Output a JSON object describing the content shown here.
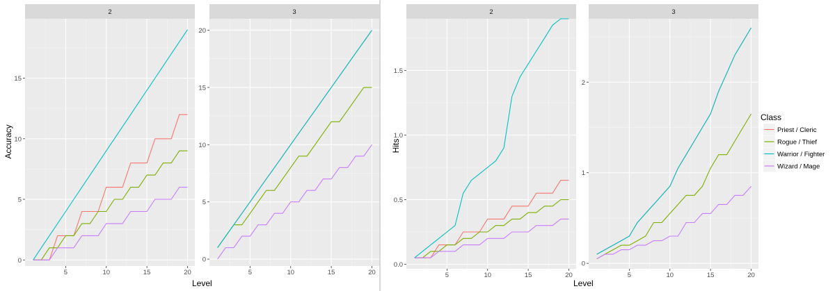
{
  "chart_data": [
    {
      "type": "line",
      "panel": "2",
      "ylabel": "Accuracy",
      "xlabel": "Level",
      "xlim": [
        0,
        20.9
      ],
      "ylim": [
        -0.5,
        19.9
      ],
      "xticks": [
        5,
        10,
        15,
        20
      ],
      "yticks": [
        0,
        5,
        10,
        15
      ],
      "x": [
        1,
        2,
        3,
        4,
        5,
        6,
        7,
        8,
        9,
        10,
        11,
        12,
        13,
        14,
        15,
        16,
        17,
        18,
        19,
        20
      ],
      "series": [
        {
          "name": "Priest / Cleric",
          "values": [
            0,
            0,
            0,
            2,
            2,
            2,
            4,
            4,
            4,
            6,
            6,
            6,
            8,
            8,
            8,
            10,
            10,
            10,
            12,
            12
          ]
        },
        {
          "name": "Rogue / Thief",
          "values": [
            0,
            0,
            1,
            1,
            2,
            2,
            3,
            3,
            4,
            4,
            5,
            5,
            6,
            6,
            7,
            7,
            8,
            8,
            9,
            9
          ]
        },
        {
          "name": "Warrior / Fighter",
          "values": [
            0,
            1,
            2,
            3,
            4,
            5,
            6,
            7,
            8,
            9,
            10,
            11,
            12,
            13,
            14,
            15,
            16,
            17,
            18,
            19
          ]
        },
        {
          "name": "Wizard / Mage",
          "values": [
            0,
            0,
            0,
            1,
            1,
            1,
            2,
            2,
            2,
            3,
            3,
            3,
            4,
            4,
            4,
            5,
            5,
            5,
            6,
            6
          ]
        }
      ]
    },
    {
      "type": "line",
      "panel": "3",
      "ylabel": "Accuracy",
      "xlabel": "Level",
      "xlim": [
        0,
        20.9
      ],
      "ylim": [
        -0.6,
        21.0
      ],
      "xticks": [
        5,
        10,
        15,
        20
      ],
      "yticks": [
        0,
        5,
        10,
        15,
        20
      ],
      "x": [
        1,
        2,
        3,
        4,
        5,
        6,
        7,
        8,
        9,
        10,
        11,
        12,
        13,
        14,
        15,
        16,
        17,
        18,
        19,
        20
      ],
      "series": [
        {
          "name": "Priest / Cleric",
          "values": [
            1,
            2,
            3,
            4,
            5,
            6,
            7,
            8,
            9,
            10,
            11,
            12,
            13,
            14,
            15,
            16,
            17,
            18,
            19,
            20
          ]
        },
        {
          "name": "Rogue / Thief",
          "values": [
            1,
            2,
            3,
            3,
            4,
            5,
            6,
            6,
            7,
            8,
            9,
            9,
            10,
            11,
            12,
            12,
            13,
            14,
            15,
            15
          ]
        },
        {
          "name": "Warrior / Fighter",
          "values": [
            1,
            2,
            3,
            4,
            5,
            6,
            7,
            8,
            9,
            10,
            11,
            12,
            13,
            14,
            15,
            16,
            17,
            18,
            19,
            20
          ]
        },
        {
          "name": "Wizard / Mage",
          "values": [
            0,
            1,
            1,
            2,
            2,
            3,
            3,
            4,
            4,
            5,
            5,
            6,
            6,
            7,
            7,
            8,
            8,
            9,
            9,
            10
          ]
        }
      ]
    },
    {
      "type": "line",
      "panel": "2",
      "ylabel": "Hits",
      "xlabel": "Level",
      "xlim": [
        0,
        20.9
      ],
      "ylim": [
        -0.035,
        1.9
      ],
      "xticks": [
        5,
        10,
        15,
        20
      ],
      "yticks": [
        0.0,
        0.5,
        1.0,
        1.5
      ],
      "ytick_labels": [
        "0.0",
        "0.5",
        "1.0",
        "1.5"
      ],
      "x": [
        1,
        2,
        3,
        4,
        5,
        6,
        7,
        8,
        9,
        10,
        11,
        12,
        13,
        14,
        15,
        16,
        17,
        18,
        19,
        20
      ],
      "series": [
        {
          "name": "Priest / Cleric",
          "values": [
            0.05,
            0.05,
            0.05,
            0.15,
            0.15,
            0.15,
            0.25,
            0.25,
            0.25,
            0.35,
            0.35,
            0.35,
            0.45,
            0.45,
            0.45,
            0.55,
            0.55,
            0.55,
            0.65,
            0.65
          ]
        },
        {
          "name": "Rogue / Thief",
          "values": [
            0.05,
            0.05,
            0.1,
            0.1,
            0.15,
            0.15,
            0.2,
            0.2,
            0.25,
            0.25,
            0.3,
            0.3,
            0.35,
            0.35,
            0.4,
            0.4,
            0.45,
            0.45,
            0.5,
            0.5
          ]
        },
        {
          "name": "Warrior / Fighter",
          "values": [
            0.05,
            0.1,
            0.15,
            0.2,
            0.25,
            0.3,
            0.55,
            0.65,
            0.7,
            0.75,
            0.8,
            0.9,
            1.3,
            1.45,
            1.55,
            1.65,
            1.75,
            1.85,
            1.9,
            1.9
          ]
        },
        {
          "name": "Wizard / Mage",
          "values": [
            0.05,
            0.05,
            0.05,
            0.1,
            0.1,
            0.1,
            0.15,
            0.15,
            0.15,
            0.2,
            0.2,
            0.2,
            0.25,
            0.25,
            0.25,
            0.3,
            0.3,
            0.3,
            0.35,
            0.35
          ]
        }
      ]
    },
    {
      "type": "line",
      "panel": "3",
      "ylabel": "Hits",
      "xlabel": "Level",
      "xlim": [
        0,
        20.9
      ],
      "ylim": [
        -0.06,
        2.7
      ],
      "xticks": [
        5,
        10,
        15,
        20
      ],
      "yticks": [
        0,
        1,
        2
      ],
      "x": [
        1,
        2,
        3,
        4,
        5,
        6,
        7,
        8,
        9,
        10,
        11,
        12,
        13,
        14,
        15,
        16,
        17,
        18,
        19,
        20
      ],
      "series": [
        {
          "name": "Priest / Cleric",
          "values": [
            0.1,
            0.15,
            0.2,
            0.25,
            0.3,
            0.45,
            0.55,
            0.65,
            0.75,
            0.85,
            1.05,
            1.2,
            1.35,
            1.5,
            1.65,
            1.9,
            2.1,
            2.3,
            2.45,
            2.6
          ]
        },
        {
          "name": "Rogue / Thief",
          "values": [
            0.05,
            0.1,
            0.15,
            0.2,
            0.2,
            0.25,
            0.3,
            0.45,
            0.45,
            0.55,
            0.65,
            0.75,
            0.75,
            0.85,
            1.05,
            1.2,
            1.2,
            1.35,
            1.5,
            1.65
          ]
        },
        {
          "name": "Warrior / Fighter",
          "values": [
            0.1,
            0.15,
            0.2,
            0.25,
            0.3,
            0.45,
            0.55,
            0.65,
            0.75,
            0.85,
            1.05,
            1.2,
            1.35,
            1.5,
            1.65,
            1.9,
            2.1,
            2.3,
            2.45,
            2.6
          ]
        },
        {
          "name": "Wizard / Mage",
          "values": [
            0.05,
            0.1,
            0.1,
            0.15,
            0.15,
            0.2,
            0.2,
            0.25,
            0.25,
            0.3,
            0.3,
            0.45,
            0.45,
            0.55,
            0.55,
            0.65,
            0.65,
            0.75,
            0.75,
            0.85
          ]
        }
      ]
    }
  ],
  "legend": {
    "title": "Class",
    "placement": "right",
    "entries": [
      {
        "label": "Priest / Cleric",
        "color": "#F8766D"
      },
      {
        "label": "Rogue / Thief",
        "color": "#7CAE00"
      },
      {
        "label": "Warrior / Fighter",
        "color": "#00BFC4"
      },
      {
        "label": "Wizard / Mage",
        "color": "#C77CFF"
      }
    ]
  },
  "colors": {
    "panel_bg": "#EBEBEB",
    "strip_bg": "#D9D9D9",
    "grid_major": "#FFFFFF",
    "divider": "#CCCCCC"
  }
}
